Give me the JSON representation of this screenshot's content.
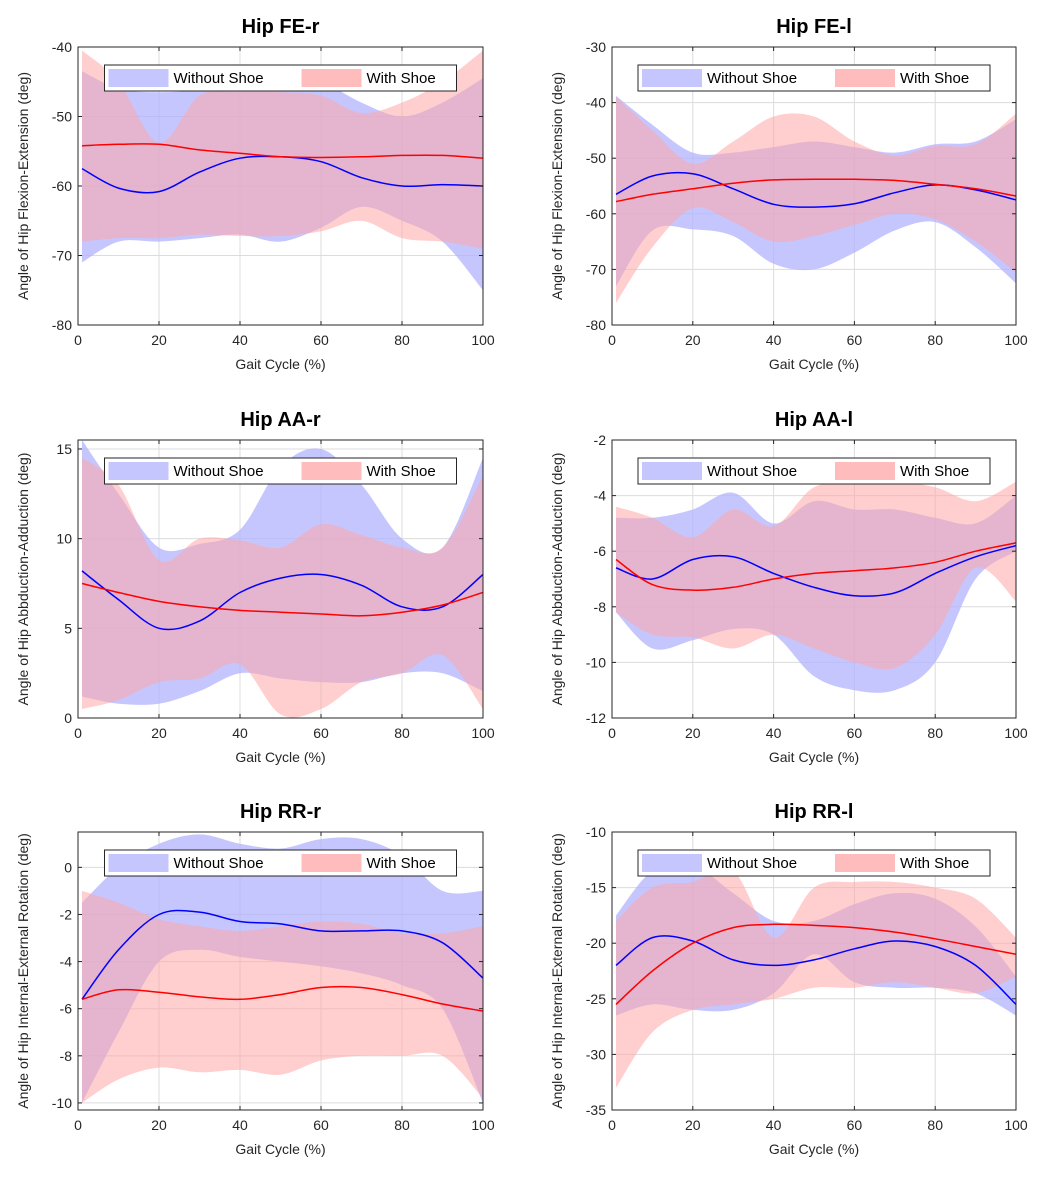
{
  "figure": {
    "colors": {
      "without_shoe": "#0000ff",
      "with_shoe": "#ff0000",
      "without_shoe_band": "#b3b3ff",
      "with_shoe_band": "#ffa6a6",
      "overlap_band": "#b37fbd"
    }
  },
  "chart_data": [
    {
      "type": "line",
      "title": "Hip FE-r",
      "xlabel": "Gait Cycle (%)",
      "ylabel": "Angle of Hip Flexion-Extension (deg)",
      "xlim": [
        0,
        100
      ],
      "ylim": [
        -80,
        -40
      ],
      "xticks": [
        0,
        20,
        40,
        60,
        80,
        100
      ],
      "yticks": [
        -80,
        -70,
        -60,
        -50,
        -40
      ],
      "grid": true,
      "legend_position": "top",
      "x": [
        0,
        10,
        20,
        30,
        40,
        50,
        60,
        70,
        80,
        90,
        100
      ],
      "series": [
        {
          "name": "Without Shoe",
          "color": "#0000ff",
          "mean": [
            -57.5,
            -60.3,
            -60.8,
            -58,
            -56,
            -55.8,
            -56.5,
            -58.8,
            -60,
            -59.8,
            -60
          ],
          "upper": [
            -43.5,
            -46,
            -46.5,
            -46,
            -44,
            -44,
            -45,
            -48,
            -50,
            -48,
            -44.5
          ],
          "lower": [
            -71,
            -68,
            -68,
            -67.5,
            -67,
            -68,
            -66,
            -63,
            -65,
            -68,
            -75
          ]
        },
        {
          "name": "With Shoe",
          "color": "#ff0000",
          "mean": [
            -54.2,
            -54,
            -54,
            -54.8,
            -55.3,
            -55.8,
            -55.9,
            -55.8,
            -55.6,
            -55.6,
            -56
          ],
          "upper": [
            -40.5,
            -45,
            -53.8,
            -47,
            -46.5,
            -46.5,
            -47,
            -49.5,
            -48,
            -45,
            -40.5
          ],
          "lower": [
            -68,
            -67.5,
            -67.5,
            -67,
            -67.2,
            -67.2,
            -66.5,
            -65,
            -67.5,
            -68,
            -69
          ]
        }
      ]
    },
    {
      "type": "line",
      "title": "Hip FE-l",
      "xlabel": "Gait Cycle (%)",
      "ylabel": "Angle of Hip Flexion-Extension (deg)",
      "xlim": [
        0,
        100
      ],
      "ylim": [
        -80,
        -30
      ],
      "xticks": [
        0,
        20,
        40,
        60,
        80,
        100
      ],
      "yticks": [
        -80,
        -70,
        -60,
        -50,
        -40,
        -30
      ],
      "grid": true,
      "legend_position": "top",
      "x": [
        0,
        10,
        20,
        30,
        40,
        50,
        60,
        70,
        80,
        90,
        100
      ],
      "series": [
        {
          "name": "Without Shoe",
          "color": "#0000ff",
          "mean": [
            -56.5,
            -53.2,
            -52.8,
            -55.5,
            -58.3,
            -58.8,
            -58.2,
            -56.2,
            -54.8,
            -55.7,
            -57.5
          ],
          "upper": [
            -38.8,
            -44,
            -49,
            -49,
            -48,
            -47,
            -48,
            -49,
            -47.5,
            -47,
            -43
          ],
          "lower": [
            -73,
            -63,
            -62.8,
            -64,
            -69,
            -70,
            -67,
            -63,
            -61.5,
            -66,
            -72.5
          ]
        },
        {
          "name": "With Shoe",
          "color": "#ff0000",
          "mean": [
            -57.8,
            -56.5,
            -55.5,
            -54.5,
            -53.9,
            -53.8,
            -53.8,
            -54,
            -54.7,
            -55.5,
            -56.8
          ],
          "upper": [
            -39,
            -45,
            -51,
            -47,
            -42.5,
            -42.5,
            -47,
            -49.5,
            -47.8,
            -47.5,
            -42
          ],
          "lower": [
            -76,
            -66,
            -59,
            -61.5,
            -65,
            -64,
            -62,
            -60,
            -61,
            -65,
            -70.5
          ]
        }
      ]
    },
    {
      "type": "line",
      "title": "Hip AA-r",
      "xlabel": "Gait Cycle (%)",
      "ylabel": "Angle of Hip Abbduction-Adduction (deg)",
      "xlim": [
        0,
        100
      ],
      "ylim": [
        0,
        15.5
      ],
      "xticks": [
        0,
        20,
        40,
        60,
        80,
        100
      ],
      "yticks": [
        0,
        5,
        10,
        15
      ],
      "grid": true,
      "legend_position": "top",
      "x": [
        0,
        10,
        20,
        30,
        40,
        50,
        60,
        70,
        80,
        90,
        100
      ],
      "series": [
        {
          "name": "Without Shoe",
          "color": "#0000ff",
          "mean": [
            8.2,
            6.6,
            5,
            5.4,
            7,
            7.8,
            8,
            7.4,
            6.2,
            6.2,
            8
          ],
          "upper": [
            15.5,
            12.5,
            9.5,
            9.7,
            10.5,
            14,
            15,
            13,
            10,
            9.5,
            14.5
          ],
          "lower": [
            1.2,
            0.8,
            0.8,
            1.5,
            2.5,
            2.2,
            2,
            2,
            2.5,
            2.5,
            1.5
          ]
        },
        {
          "name": "With Shoe",
          "color": "#ff0000",
          "mean": [
            7.5,
            7,
            6.5,
            6.2,
            6,
            5.9,
            5.8,
            5.7,
            5.9,
            6.3,
            7
          ],
          "upper": [
            14.5,
            13,
            8.8,
            10,
            9.9,
            9.5,
            10.8,
            10.2,
            9.5,
            9.5,
            13.5
          ],
          "lower": [
            0.5,
            1,
            2,
            2.2,
            3,
            0.2,
            0.5,
            2,
            2.5,
            3.5,
            0.5
          ]
        }
      ]
    },
    {
      "type": "line",
      "title": "Hip AA-l",
      "xlabel": "Gait Cycle (%)",
      "ylabel": "Angle of Hip Abbduction-Adduction (deg)",
      "xlim": [
        0,
        100
      ],
      "ylim": [
        -12,
        -2
      ],
      "xticks": [
        0,
        20,
        40,
        60,
        80,
        100
      ],
      "yticks": [
        -12,
        -10,
        -8,
        -6,
        -4,
        -2
      ],
      "grid": true,
      "legend_position": "top",
      "x": [
        0,
        10,
        20,
        30,
        40,
        50,
        60,
        70,
        80,
        90,
        100
      ],
      "series": [
        {
          "name": "Without Shoe",
          "color": "#0000ff",
          "mean": [
            -6.6,
            -7,
            -6.3,
            -6.2,
            -6.8,
            -7.3,
            -7.6,
            -7.5,
            -6.8,
            -6.2,
            -5.8
          ],
          "upper": [
            -4.8,
            -4.8,
            -4.5,
            -3.9,
            -5,
            -4.2,
            -4.5,
            -4.5,
            -4.8,
            -5,
            -4
          ],
          "lower": [
            -8.2,
            -9.5,
            -9.2,
            -8.8,
            -9,
            -10.5,
            -11,
            -11,
            -10,
            -7,
            -6
          ]
        },
        {
          "name": "With Shoe",
          "color": "#ff0000",
          "mean": [
            -6.3,
            -7.2,
            -7.4,
            -7.3,
            -7,
            -6.8,
            -6.7,
            -6.6,
            -6.4,
            -6,
            -5.7
          ],
          "upper": [
            -4.4,
            -4.8,
            -5.5,
            -4.5,
            -5.1,
            -3.7,
            -3.6,
            -3.5,
            -3.7,
            -4.2,
            -3.5
          ],
          "lower": [
            -8.2,
            -9,
            -9.1,
            -9.5,
            -9,
            -9.5,
            -10,
            -10.2,
            -9,
            -6.6,
            -7.8
          ]
        }
      ]
    },
    {
      "type": "line",
      "title": "Hip RR-r",
      "xlabel": "Gait Cycle (%)",
      "ylabel": "Angle of Hip Internal-External Rotation (deg)",
      "xlim": [
        0,
        100
      ],
      "ylim": [
        -10.3,
        1.5
      ],
      "xticks": [
        0,
        20,
        40,
        60,
        80,
        100
      ],
      "yticks": [
        -10,
        -8,
        -6,
        -4,
        -2,
        0
      ],
      "grid": true,
      "legend_position": "top",
      "x": [
        0,
        10,
        20,
        30,
        40,
        50,
        60,
        70,
        80,
        90,
        100
      ],
      "series": [
        {
          "name": "Without Shoe",
          "color": "#0000ff",
          "mean": [
            -5.6,
            -3.5,
            -2,
            -1.9,
            -2.3,
            -2.4,
            -2.7,
            -2.7,
            -2.7,
            -3.2,
            -4.7
          ],
          "upper": [
            -1.5,
            0,
            1,
            1.4,
            1,
            0.8,
            1.2,
            1.2,
            0.5,
            -1,
            -1
          ],
          "lower": [
            -10,
            -7,
            -4,
            -3.5,
            -3.8,
            -4,
            -4.2,
            -4.5,
            -5,
            -6,
            -10
          ]
        },
        {
          "name": "With Shoe",
          "color": "#ff0000",
          "mean": [
            -5.6,
            -5.2,
            -5.3,
            -5.5,
            -5.6,
            -5.4,
            -5.1,
            -5.1,
            -5.4,
            -5.8,
            -6.1
          ],
          "upper": [
            -1,
            -1.5,
            -2.2,
            -2.5,
            -2.7,
            -2.5,
            -2.3,
            -2.4,
            -2.8,
            -2.8,
            -2.5
          ],
          "lower": [
            -10,
            -9,
            -8.5,
            -8.7,
            -8.6,
            -8.8,
            -8.2,
            -8,
            -8,
            -8,
            -9.8
          ]
        }
      ]
    },
    {
      "type": "line",
      "title": "Hip RR-l",
      "xlabel": "Gait Cycle (%)",
      "ylabel": "Angle of Hip Internal-External Rotation (deg)",
      "xlim": [
        0,
        100
      ],
      "ylim": [
        -35,
        -10
      ],
      "xticks": [
        0,
        20,
        40,
        60,
        80,
        100
      ],
      "yticks": [
        -35,
        -30,
        -25,
        -20,
        -15,
        -10
      ],
      "grid": true,
      "legend_position": "top",
      "x": [
        0,
        10,
        20,
        30,
        40,
        50,
        60,
        70,
        80,
        90,
        100
      ],
      "series": [
        {
          "name": "Without Shoe",
          "color": "#0000ff",
          "mean": [
            -22,
            -19.5,
            -19.8,
            -21.5,
            -22,
            -21.5,
            -20.5,
            -19.8,
            -20.3,
            -22,
            -25.5
          ],
          "upper": [
            -17.5,
            -13.5,
            -13,
            -15.5,
            -18,
            -18,
            -16.5,
            -15.5,
            -16,
            -18.5,
            -23
          ],
          "lower": [
            -26.5,
            -25.5,
            -26,
            -26,
            -24.5,
            -21,
            -23.5,
            -24,
            -24,
            -24.5,
            -26.5
          ]
        },
        {
          "name": "With Shoe",
          "color": "#ff0000",
          "mean": [
            -25.5,
            -22.5,
            -20,
            -18.6,
            -18.3,
            -18.4,
            -18.6,
            -19,
            -19.6,
            -20.3,
            -21
          ],
          "upper": [
            -18,
            -15,
            -14.5,
            -13.5,
            -19.5,
            -15,
            -14.5,
            -14.5,
            -15,
            -16,
            -19.5
          ],
          "lower": [
            -33,
            -28,
            -26,
            -25.5,
            -25,
            -24,
            -24,
            -23.5,
            -24,
            -24.5,
            -23
          ]
        }
      ]
    }
  ]
}
